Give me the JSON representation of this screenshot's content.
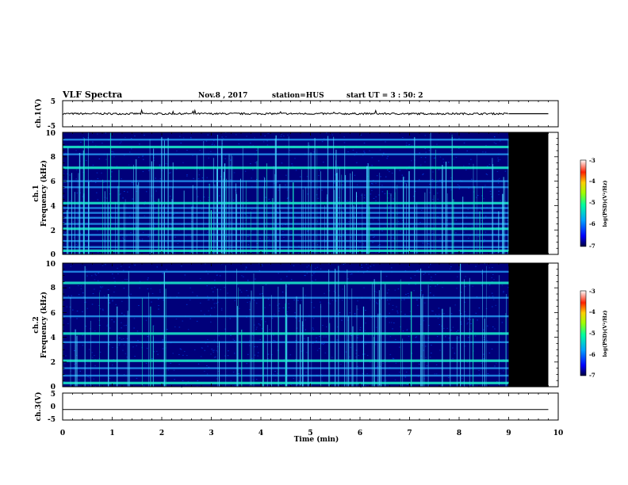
{
  "header": {
    "title": "VLF Spectra",
    "date": "Nov.8 , 2017",
    "station": "station=HUS",
    "start": "start UT = 3 : 50: 2"
  },
  "chart_data": [
    {
      "type": "line",
      "panel": "ch1-waveform",
      "ylabel": "ch.1(V)",
      "ylim": [
        -5,
        5
      ],
      "yticks": [
        "5",
        "-5"
      ],
      "signal": {
        "x_end": 9.0,
        "level": 0,
        "noise_amplitude": 0.35
      },
      "after_signal": {
        "x_start": 9.0,
        "x_end": 9.8,
        "level": 0
      }
    },
    {
      "type": "heatmap",
      "panel": "ch1-spectrogram",
      "ylabel": "ch.1 Frequency (kHz)",
      "ylabel_lines": [
        "ch.1",
        "Frequency (kHz)"
      ],
      "ylim": [
        0,
        10
      ],
      "yticks": [
        "0",
        "2",
        "4",
        "6",
        "8",
        "10"
      ],
      "data_end_min": 9.0,
      "no_data_until": 9.8,
      "bands_khz": [
        0.3,
        0.6,
        1.1,
        1.6,
        2.1,
        2.5,
        3.0,
        3.4,
        3.8,
        4.2,
        5.5,
        6.0,
        7.1,
        8.2,
        8.8,
        9.4
      ],
      "strong_bands_khz": [
        0.3,
        2.1,
        4.2,
        7.1,
        8.8
      ],
      "colorbar": {
        "label": "log(PSD)(V²/Hz)",
        "range": [
          -7,
          -3
        ],
        "ticks": [
          "-3",
          "-4",
          "-5",
          "-6",
          "-7"
        ]
      }
    },
    {
      "type": "heatmap",
      "panel": "ch2-spectrogram",
      "ylabel": "ch.2 Frequency (kHz)",
      "ylabel_lines": [
        "ch.2",
        "Frequency (kHz)"
      ],
      "ylim": [
        0,
        10
      ],
      "yticks": [
        "0",
        "2",
        "4",
        "6",
        "8",
        "10"
      ],
      "data_end_min": 9.0,
      "no_data_until": 9.8,
      "bands_khz": [
        0.3,
        0.9,
        1.5,
        2.1,
        3.6,
        4.3,
        5.7,
        7.2,
        8.4,
        9.3
      ],
      "strong_bands_khz": [
        0.3,
        2.1,
        4.3,
        8.4
      ],
      "colorbar": {
        "label": "log(PSD)(V²/Hz)",
        "range": [
          -7,
          -3
        ],
        "ticks": [
          "-3",
          "-4",
          "-5",
          "-6",
          "-7"
        ]
      }
    },
    {
      "type": "line",
      "panel": "ch3-waveform",
      "ylabel": "ch.3(V)",
      "ylim": [
        -5,
        5
      ],
      "yticks": [
        "5",
        "0",
        "-5"
      ],
      "signal": {
        "x_end": 9.8,
        "level": -1.1,
        "noise_amplitude": 0
      }
    }
  ],
  "xaxis": {
    "label": "Time (min)",
    "range": [
      0,
      10
    ],
    "ticks": [
      "0",
      "1",
      "2",
      "3",
      "4",
      "5",
      "6",
      "7",
      "8",
      "9",
      "10"
    ]
  },
  "colors": {
    "background_spec": "#00007a",
    "no_data": "#000000",
    "band": "#2aa8ff",
    "strong_band": "#19e6c8",
    "spike": "#47d6ff"
  }
}
